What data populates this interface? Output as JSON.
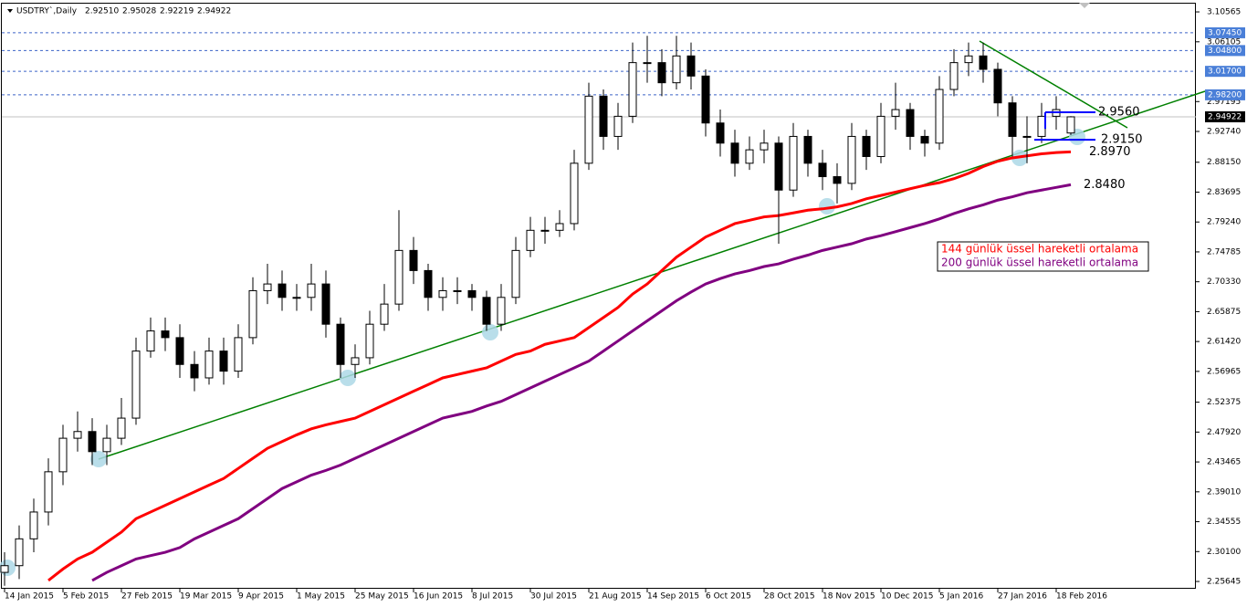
{
  "chart_data": {
    "type": "candlestick",
    "title": "USDTRY`,Daily",
    "header_ohlc": [
      {
        "value": 2.9251,
        "label": "2.92510"
      },
      {
        "value": 2.95028,
        "label": "2.95028"
      },
      {
        "value": 2.92219,
        "label": "2.92219"
      },
      {
        "value": 2.94922,
        "label": "2.94922"
      }
    ],
    "categories": [
      "14 Jan 2015",
      null,
      null,
      null,
      "5 Feb 2015",
      null,
      null,
      null,
      "27 Feb 2015",
      null,
      null,
      null,
      "19 Mar 2015",
      null,
      null,
      null,
      "9 Apr 2015",
      null,
      null,
      null,
      "1 May 2015",
      null,
      null,
      null,
      "25 May 2015",
      null,
      null,
      null,
      "16 Jun 2015",
      null,
      null,
      null,
      "8 Jul 2015",
      null,
      null,
      null,
      "30 Jul 2015",
      null,
      null,
      null,
      "21 Aug 2015",
      null,
      null,
      null,
      "14 Sep 2015",
      null,
      null,
      null,
      "6 Oct 2015",
      null,
      null,
      null,
      "28 Oct 2015",
      null,
      null,
      null,
      "18 Nov 2015",
      null,
      null,
      null,
      "10 Dec 2015",
      null,
      null,
      null,
      "5 Jan 2016",
      null,
      null,
      null,
      "27 Jan 2016",
      null,
      null,
      null,
      "18 Feb 2016",
      null
    ],
    "open": [
      2.27,
      2.28,
      2.32,
      2.36,
      2.42,
      2.47,
      2.48,
      2.45,
      2.47,
      2.5,
      2.6,
      2.63,
      2.62,
      2.58,
      2.56,
      2.6,
      2.57,
      2.62,
      2.69,
      2.7,
      2.68,
      2.68,
      2.7,
      2.64,
      2.58,
      2.59,
      2.64,
      2.67,
      2.75,
      2.72,
      2.68,
      2.69,
      2.69,
      2.68,
      2.64,
      2.68,
      2.75,
      2.78,
      2.78,
      2.79,
      2.88,
      2.98,
      2.92,
      2.95,
      3.03,
      3.03,
      3.0,
      3.04,
      3.01,
      2.94,
      2.91,
      2.88,
      2.9,
      2.91,
      2.84,
      2.92,
      2.88,
      2.86,
      2.85,
      2.92,
      2.89,
      2.95,
      2.96,
      2.92,
      2.91,
      2.99,
      3.03,
      3.04,
      3.02,
      2.97,
      2.92,
      2.92,
      2.95,
      2.9251
    ],
    "high": [
      2.3,
      2.34,
      2.38,
      2.44,
      2.49,
      2.51,
      2.5,
      2.49,
      2.53,
      2.62,
      2.65,
      2.65,
      2.64,
      2.6,
      2.62,
      2.62,
      2.64,
      2.71,
      2.73,
      2.72,
      2.7,
      2.73,
      2.72,
      2.65,
      2.61,
      2.66,
      2.7,
      2.81,
      2.77,
      2.73,
      2.71,
      2.71,
      2.7,
      2.69,
      2.7,
      2.77,
      2.8,
      2.8,
      2.81,
      2.9,
      3.0,
      2.99,
      2.97,
      3.06,
      3.07,
      3.05,
      3.07,
      3.06,
      3.02,
      2.96,
      2.93,
      2.92,
      2.93,
      2.92,
      2.94,
      2.93,
      2.9,
      2.88,
      2.94,
      2.93,
      2.97,
      3.0,
      2.97,
      2.93,
      3.01,
      3.05,
      3.06,
      3.06,
      3.03,
      2.98,
      2.95,
      2.97,
      2.98,
      2.95028
    ],
    "low": [
      2.25,
      2.26,
      2.3,
      2.34,
      2.4,
      2.45,
      2.43,
      2.43,
      2.46,
      2.49,
      2.59,
      2.6,
      2.56,
      2.54,
      2.55,
      2.55,
      2.56,
      2.61,
      2.67,
      2.66,
      2.66,
      2.66,
      2.62,
      2.56,
      2.56,
      2.58,
      2.63,
      2.66,
      2.7,
      2.66,
      2.66,
      2.67,
      2.66,
      2.63,
      2.63,
      2.67,
      2.74,
      2.76,
      2.77,
      2.78,
      2.87,
      2.9,
      2.9,
      2.94,
      3.0,
      2.98,
      2.99,
      2.99,
      2.92,
      2.89,
      2.86,
      2.87,
      2.88,
      2.76,
      2.83,
      2.86,
      2.84,
      2.82,
      2.84,
      2.87,
      2.88,
      2.93,
      2.9,
      2.89,
      2.9,
      2.98,
      3.01,
      3.0,
      2.95,
      2.89,
      2.88,
      2.91,
      2.93,
      2.92219
    ],
    "close": [
      2.28,
      2.32,
      2.36,
      2.42,
      2.47,
      2.48,
      2.45,
      2.47,
      2.5,
      2.6,
      2.63,
      2.62,
      2.58,
      2.56,
      2.6,
      2.57,
      2.62,
      2.69,
      2.7,
      2.68,
      2.68,
      2.7,
      2.64,
      2.58,
      2.59,
      2.64,
      2.67,
      2.75,
      2.72,
      2.68,
      2.69,
      2.69,
      2.68,
      2.64,
      2.68,
      2.75,
      2.78,
      2.78,
      2.79,
      2.88,
      2.98,
      2.92,
      2.95,
      3.03,
      3.03,
      3.0,
      3.04,
      3.01,
      2.94,
      2.91,
      2.88,
      2.9,
      2.91,
      2.84,
      2.92,
      2.88,
      2.86,
      2.85,
      2.92,
      2.89,
      2.95,
      2.96,
      2.92,
      2.91,
      2.99,
      3.03,
      3.04,
      3.02,
      2.97,
      2.92,
      2.92,
      2.95,
      2.96,
      2.94922
    ],
    "series": [
      {
        "name": "144 günlük üssel hareketli ortalama",
        "color": "#ff0000",
        "values": [
          null,
          null,
          null,
          2.258,
          2.275,
          2.29,
          2.3,
          2.315,
          2.33,
          2.35,
          2.36,
          2.37,
          2.38,
          2.39,
          2.4,
          2.41,
          2.425,
          2.44,
          2.455,
          2.465,
          2.475,
          2.484,
          2.49,
          2.495,
          2.5,
          2.51,
          2.52,
          2.53,
          2.54,
          2.55,
          2.56,
          2.565,
          2.57,
          2.575,
          2.585,
          2.595,
          2.6,
          2.61,
          2.615,
          2.62,
          2.635,
          2.65,
          2.665,
          2.685,
          2.7,
          2.72,
          2.74,
          2.755,
          2.77,
          2.78,
          2.79,
          2.795,
          2.8,
          2.802,
          2.806,
          2.81,
          2.812,
          2.815,
          2.82,
          2.827,
          2.832,
          2.837,
          2.842,
          2.847,
          2.851,
          2.857,
          2.865,
          2.875,
          2.883,
          2.888,
          2.891,
          2.894,
          2.896,
          2.897
        ]
      },
      {
        "name": "200 günlük üssel hareketli ortalama",
        "color": "#800080",
        "values": [
          null,
          null,
          null,
          null,
          null,
          null,
          2.258,
          2.27,
          2.28,
          2.29,
          2.295,
          2.3,
          2.307,
          2.32,
          2.33,
          2.34,
          2.35,
          2.365,
          2.38,
          2.395,
          2.405,
          2.415,
          2.422,
          2.43,
          2.44,
          2.45,
          2.46,
          2.47,
          2.48,
          2.49,
          2.5,
          2.505,
          2.51,
          2.518,
          2.525,
          2.535,
          2.545,
          2.555,
          2.565,
          2.575,
          2.585,
          2.6,
          2.615,
          2.63,
          2.645,
          2.66,
          2.675,
          2.688,
          2.7,
          2.708,
          2.715,
          2.72,
          2.726,
          2.73,
          2.737,
          2.743,
          2.75,
          2.755,
          2.76,
          2.767,
          2.772,
          2.778,
          2.784,
          2.79,
          2.797,
          2.805,
          2.812,
          2.818,
          2.825,
          2.83,
          2.836,
          2.84,
          2.844,
          2.848
        ]
      }
    ],
    "ylim": [
      2.2456,
      3.1193
    ],
    "yticks": [
      3.10565,
      3.06105,
      2.97195,
      {
        "value": 2.9274,
        "label": "2.92740"
      },
      {
        "value": 2.8815,
        "label": "2.88150"
      },
      2.83695,
      {
        "value": 2.7924,
        "label": "2.79240"
      },
      2.74785,
      {
        "value": 2.7033,
        "label": "2.70330"
      },
      2.65875,
      {
        "value": 2.6142,
        "label": "2.61420"
      },
      2.56965,
      2.52375,
      {
        "value": 2.4792,
        "label": "2.47920"
      },
      2.43465,
      {
        "value": 2.3901,
        "label": "2.39010"
      },
      2.34555,
      {
        "value": 2.301,
        "label": "2.30100"
      },
      2.25645
    ],
    "levels": [
      {
        "value": 3.0745,
        "label": "3.07450"
      },
      {
        "value": 3.048,
        "label": "3.04800"
      },
      {
        "value": 3.017,
        "label": "3.01700"
      },
      {
        "value": 2.982,
        "label": "2.98200"
      }
    ],
    "annotations": [
      {
        "value": 2.956,
        "label": "2.9560"
      },
      {
        "value": 2.915,
        "label": "2.9150"
      },
      {
        "value": 2.897,
        "label": "2.8970"
      },
      {
        "value": 2.848,
        "label": "2.8480"
      }
    ]
  }
}
